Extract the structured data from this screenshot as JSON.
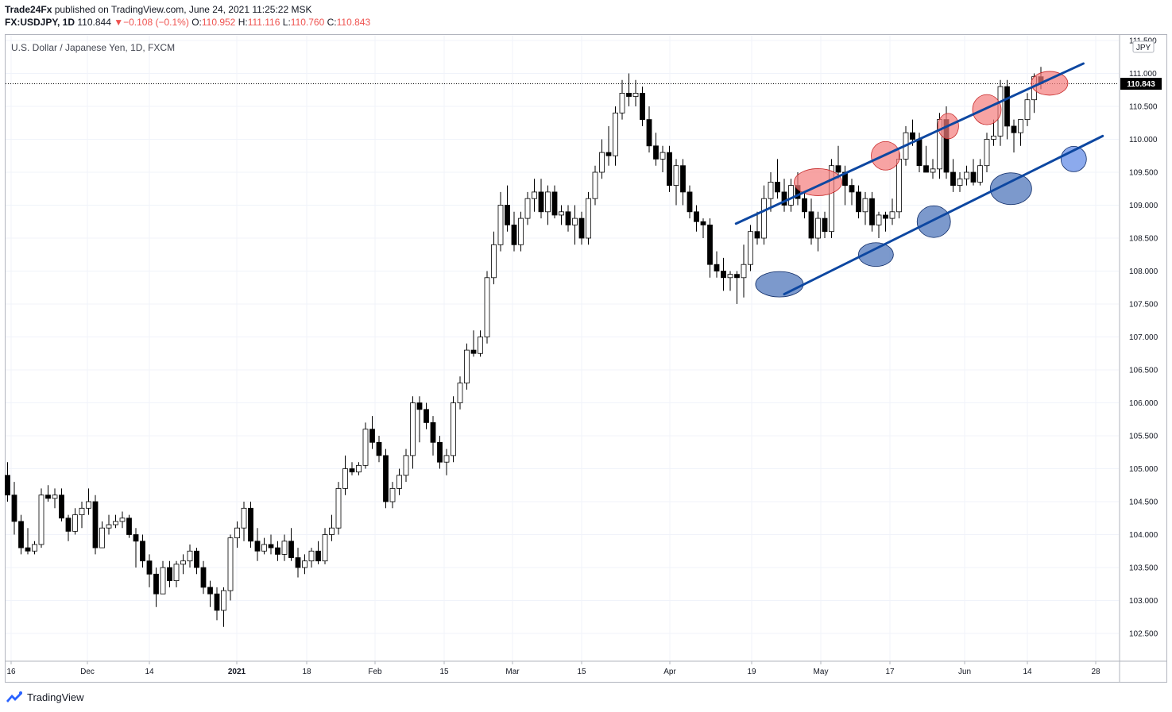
{
  "header": {
    "publisher": "Trade24Fx",
    "published_text": " published on TradingView.com, June 24, 2021 11:25:22 MSK",
    "symbol": "FX:USDJPY, 1D",
    "last": "110.844",
    "change": "−0.108 (−0.1%)",
    "o_label": "O:",
    "o": "110.952",
    "h_label": "H:",
    "h": "111.116",
    "l_label": "L:",
    "l": "110.760",
    "c_label": "C:",
    "c": "110.843"
  },
  "chart_title": "U.S. Dollar / Japanese Yen, 1D, FXCM",
  "currency_badge": "JPY",
  "price_badge": "110.843",
  "footer": {
    "brand": "TradingView",
    "logo_icon": "tradingview-logo-icon"
  },
  "colors": {
    "up_fill": "#ffffff",
    "down_fill": "#000000",
    "channel": "#0d47a1",
    "top_marker": "#f47c7c",
    "bottom_marker": "#5b7fbf",
    "badge": "#000000"
  },
  "chart_data": {
    "type": "candlestick",
    "ylim": [
      102.2,
      111.45
    ],
    "y_ticks": [
      "111.500",
      "111.000",
      "110.500",
      "110.000",
      "109.500",
      "109.000",
      "108.500",
      "108.000",
      "107.500",
      "107.000",
      "106.500",
      "106.000",
      "105.500",
      "105.000",
      "104.500",
      "104.000",
      "103.500",
      "103.000",
      "102.500"
    ],
    "x_ticks": [
      "16",
      "Dec",
      "14",
      "2021",
      "18",
      "Feb",
      "15",
      "Mar",
      "15",
      "Apr",
      "19",
      "May",
      "17",
      "Jun",
      "14",
      "28"
    ],
    "ohlc": [
      [
        104.9,
        105.1,
        104.5,
        104.6
      ],
      [
        104.6,
        104.8,
        104.0,
        104.2
      ],
      [
        104.2,
        104.3,
        103.7,
        103.8
      ],
      [
        103.8,
        104.1,
        103.7,
        103.75
      ],
      [
        103.75,
        103.9,
        103.7,
        103.85
      ],
      [
        103.85,
        104.7,
        103.8,
        104.6
      ],
      [
        104.6,
        104.75,
        104.5,
        104.55
      ],
      [
        104.55,
        104.7,
        104.4,
        104.6
      ],
      [
        104.6,
        104.7,
        104.2,
        104.25
      ],
      [
        104.25,
        104.3,
        103.9,
        104.05
      ],
      [
        104.05,
        104.4,
        104.0,
        104.3
      ],
      [
        104.3,
        104.5,
        104.1,
        104.4
      ],
      [
        104.4,
        104.7,
        104.3,
        104.5
      ],
      [
        104.5,
        104.6,
        103.7,
        103.8
      ],
      [
        103.8,
        104.2,
        103.8,
        104.1
      ],
      [
        104.1,
        104.3,
        104.0,
        104.15
      ],
      [
        104.15,
        104.3,
        104.1,
        104.2
      ],
      [
        104.2,
        104.35,
        104.1,
        104.25
      ],
      [
        104.25,
        104.3,
        103.95,
        104.0
      ],
      [
        104.0,
        104.1,
        103.5,
        103.9
      ],
      [
        103.9,
        104.0,
        103.5,
        103.6
      ],
      [
        103.6,
        103.7,
        103.2,
        103.4
      ],
      [
        103.4,
        103.5,
        102.9,
        103.1
      ],
      [
        103.1,
        103.6,
        103.1,
        103.5
      ],
      [
        103.5,
        103.6,
        103.2,
        103.3
      ],
      [
        103.3,
        103.6,
        103.2,
        103.55
      ],
      [
        103.55,
        103.7,
        103.4,
        103.6
      ],
      [
        103.6,
        103.85,
        103.5,
        103.75
      ],
      [
        103.75,
        103.8,
        103.4,
        103.5
      ],
      [
        103.5,
        103.6,
        103.1,
        103.2
      ],
      [
        103.2,
        103.3,
        102.9,
        103.1
      ],
      [
        103.1,
        103.2,
        102.7,
        102.85
      ],
      [
        102.85,
        103.2,
        102.6,
        103.15
      ],
      [
        103.15,
        104.0,
        103.0,
        103.95
      ],
      [
        103.95,
        104.2,
        103.8,
        104.1
      ],
      [
        104.1,
        104.5,
        103.9,
        104.4
      ],
      [
        104.4,
        104.5,
        103.8,
        103.9
      ],
      [
        103.9,
        104.1,
        103.6,
        103.75
      ],
      [
        103.75,
        103.95,
        103.7,
        103.85
      ],
      [
        103.85,
        104.0,
        103.7,
        103.8
      ],
      [
        103.8,
        103.9,
        103.6,
        103.7
      ],
      [
        103.7,
        104.0,
        103.6,
        103.9
      ],
      [
        103.9,
        104.1,
        103.6,
        103.65
      ],
      [
        103.65,
        103.8,
        103.35,
        103.5
      ],
      [
        103.5,
        103.7,
        103.4,
        103.6
      ],
      [
        103.6,
        103.8,
        103.5,
        103.75
      ],
      [
        103.75,
        103.9,
        103.55,
        103.6
      ],
      [
        103.6,
        104.1,
        103.55,
        104.0
      ],
      [
        104.0,
        104.3,
        103.9,
        104.1
      ],
      [
        104.1,
        104.8,
        104.0,
        104.7
      ],
      [
        104.7,
        105.2,
        104.6,
        105.0
      ],
      [
        105.0,
        105.1,
        104.9,
        104.95
      ],
      [
        104.95,
        105.1,
        104.9,
        105.05
      ],
      [
        105.05,
        105.7,
        105.0,
        105.6
      ],
      [
        105.6,
        105.8,
        105.3,
        105.4
      ],
      [
        105.4,
        105.5,
        105.1,
        105.2
      ],
      [
        105.2,
        105.3,
        104.4,
        104.5
      ],
      [
        104.5,
        104.8,
        104.4,
        104.7
      ],
      [
        104.7,
        105.0,
        104.6,
        104.9
      ],
      [
        104.9,
        105.3,
        104.8,
        105.2
      ],
      [
        105.2,
        106.1,
        105.0,
        106.0
      ],
      [
        106.0,
        106.1,
        105.4,
        105.9
      ],
      [
        105.9,
        106.0,
        105.6,
        105.7
      ],
      [
        105.7,
        105.8,
        105.2,
        105.4
      ],
      [
        105.4,
        105.5,
        105.0,
        105.1
      ],
      [
        105.1,
        105.3,
        104.9,
        105.2
      ],
      [
        105.2,
        106.1,
        105.1,
        106.0
      ],
      [
        106.0,
        106.4,
        105.9,
        106.3
      ],
      [
        106.3,
        106.9,
        106.2,
        106.8
      ],
      [
        106.8,
        107.1,
        106.7,
        106.75
      ],
      [
        106.75,
        107.1,
        106.7,
        107.0
      ],
      [
        107.0,
        108.0,
        106.9,
        107.9
      ],
      [
        107.9,
        108.6,
        107.8,
        108.4
      ],
      [
        108.4,
        109.2,
        108.3,
        109.0
      ],
      [
        109.0,
        109.3,
        108.6,
        108.7
      ],
      [
        108.7,
        108.9,
        108.3,
        108.4
      ],
      [
        108.4,
        108.9,
        108.3,
        108.8
      ],
      [
        108.8,
        109.2,
        108.7,
        109.1
      ],
      [
        109.1,
        109.4,
        108.9,
        109.2
      ],
      [
        109.2,
        109.4,
        108.8,
        108.9
      ],
      [
        108.9,
        109.3,
        108.7,
        109.2
      ],
      [
        109.2,
        109.3,
        108.8,
        108.85
      ],
      [
        108.85,
        109.0,
        108.7,
        108.9
      ],
      [
        108.9,
        109.0,
        108.6,
        108.7
      ],
      [
        108.7,
        109.0,
        108.4,
        108.8
      ],
      [
        108.8,
        108.9,
        108.4,
        108.5
      ],
      [
        108.5,
        109.2,
        108.4,
        109.1
      ],
      [
        109.1,
        109.6,
        109.0,
        109.5
      ],
      [
        109.5,
        110.0,
        109.4,
        109.8
      ],
      [
        109.8,
        110.2,
        109.6,
        109.75
      ],
      [
        109.75,
        110.5,
        109.6,
        110.4
      ],
      [
        110.4,
        110.9,
        110.3,
        110.7
      ],
      [
        110.7,
        111.0,
        110.5,
        110.65
      ],
      [
        110.65,
        110.9,
        110.5,
        110.7
      ],
      [
        110.7,
        110.8,
        110.2,
        110.3
      ],
      [
        110.3,
        110.5,
        109.8,
        109.9
      ],
      [
        109.9,
        110.1,
        109.6,
        109.7
      ],
      [
        109.7,
        109.9,
        109.5,
        109.8
      ],
      [
        109.8,
        109.9,
        109.2,
        109.3
      ],
      [
        109.3,
        109.7,
        109.0,
        109.6
      ],
      [
        109.6,
        109.7,
        109.0,
        109.2
      ],
      [
        109.2,
        109.3,
        108.8,
        108.9
      ],
      [
        108.9,
        109.0,
        108.6,
        108.75
      ],
      [
        108.75,
        108.8,
        108.5,
        108.7
      ],
      [
        108.7,
        108.8,
        107.9,
        108.1
      ],
      [
        108.1,
        108.3,
        107.9,
        108.0
      ],
      [
        108.0,
        108.2,
        107.7,
        107.9
      ],
      [
        107.9,
        108.0,
        107.7,
        107.95
      ],
      [
        107.95,
        108.0,
        107.5,
        107.9
      ],
      [
        107.9,
        108.4,
        107.6,
        108.1
      ],
      [
        108.1,
        108.7,
        108.0,
        108.6
      ],
      [
        108.6,
        108.9,
        108.4,
        108.5
      ],
      [
        108.5,
        109.3,
        108.4,
        109.1
      ],
      [
        109.1,
        109.5,
        108.9,
        109.35
      ],
      [
        109.35,
        109.7,
        109.1,
        109.2
      ],
      [
        109.2,
        109.4,
        108.9,
        109.0
      ],
      [
        109.0,
        109.4,
        108.9,
        109.3
      ],
      [
        109.3,
        109.5,
        109.0,
        109.1
      ],
      [
        109.1,
        109.2,
        108.8,
        108.9
      ],
      [
        108.9,
        109.1,
        108.4,
        108.5
      ],
      [
        108.5,
        108.9,
        108.3,
        108.8
      ],
      [
        108.8,
        108.9,
        108.5,
        108.6
      ],
      [
        108.6,
        109.7,
        108.5,
        109.6
      ],
      [
        109.6,
        109.9,
        109.4,
        109.5
      ],
      [
        109.5,
        109.6,
        109.0,
        109.3
      ],
      [
        109.3,
        109.4,
        109.0,
        109.2
      ],
      [
        109.2,
        109.3,
        108.8,
        108.9
      ],
      [
        108.9,
        109.2,
        108.7,
        109.1
      ],
      [
        109.1,
        109.2,
        108.6,
        108.7
      ],
      [
        108.7,
        108.9,
        108.5,
        108.85
      ],
      [
        108.85,
        108.9,
        108.6,
        108.8
      ],
      [
        108.8,
        109.1,
        108.7,
        108.9
      ],
      [
        108.9,
        109.8,
        108.8,
        109.7
      ],
      [
        109.7,
        110.2,
        109.6,
        110.1
      ],
      [
        110.1,
        110.3,
        109.9,
        110.0
      ],
      [
        110.0,
        110.1,
        109.5,
        109.6
      ],
      [
        109.6,
        109.9,
        109.5,
        109.5
      ],
      [
        109.5,
        109.7,
        109.4,
        109.55
      ],
      [
        109.55,
        110.4,
        109.4,
        110.3
      ],
      [
        110.3,
        110.5,
        109.4,
        109.5
      ],
      [
        109.5,
        109.7,
        109.2,
        109.3
      ],
      [
        109.3,
        109.5,
        109.2,
        109.4
      ],
      [
        109.4,
        109.6,
        109.3,
        109.5
      ],
      [
        109.5,
        109.7,
        109.3,
        109.35
      ],
      [
        109.35,
        109.7,
        109.3,
        109.6
      ],
      [
        109.6,
        110.1,
        109.5,
        110.0
      ],
      [
        110.0,
        110.3,
        109.9,
        110.05
      ],
      [
        110.05,
        110.9,
        109.9,
        110.8
      ],
      [
        110.8,
        110.9,
        110.0,
        110.2
      ],
      [
        110.2,
        110.3,
        109.8,
        110.1
      ],
      [
        110.1,
        110.3,
        109.9,
        110.3
      ],
      [
        110.3,
        110.7,
        110.2,
        110.6
      ],
      [
        110.6,
        111.0,
        110.4,
        110.95
      ],
      [
        110.95,
        111.1,
        110.76,
        110.843
      ]
    ],
    "channel_upper": [
      [
        "2021-04-13",
        108.72
      ],
      [
        "2021-06-24",
        111.15
      ]
    ],
    "channel_lower": [
      [
        "2021-04-23",
        107.65
      ],
      [
        "2021-06-28",
        110.05
      ]
    ],
    "marker_tops_date_price": [
      [
        "2021-04-30",
        109.35
      ],
      [
        "2021-05-14",
        109.75
      ],
      [
        "2021-05-27",
        110.2
      ],
      [
        "2021-06-04",
        110.45
      ],
      [
        "2021-06-17",
        110.85
      ]
    ],
    "marker_bottoms_date_price": [
      [
        "2021-04-22",
        107.8
      ],
      [
        "2021-05-12",
        108.25
      ],
      [
        "2021-05-24",
        108.75
      ],
      [
        "2021-06-09",
        109.25
      ],
      [
        "2021-06-22",
        109.7
      ]
    ]
  }
}
